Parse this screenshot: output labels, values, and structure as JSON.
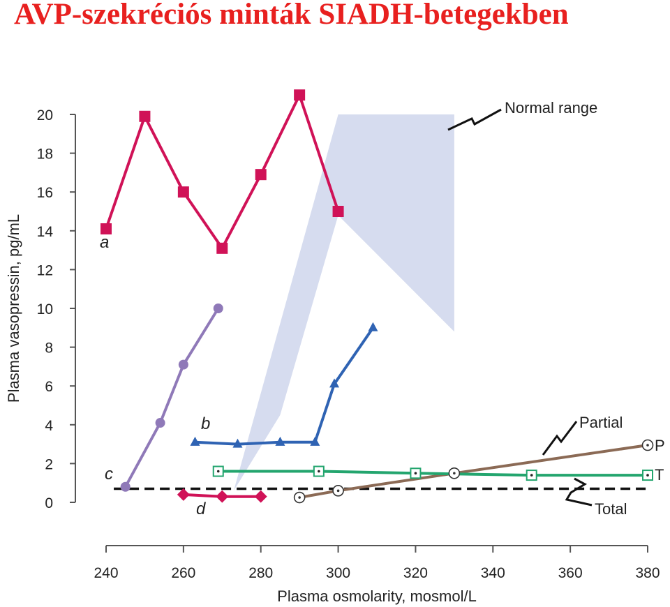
{
  "page": {
    "title": "AVP-szekréciós minták SIADH-betegekben"
  },
  "chart_data": {
    "type": "line",
    "xlabel": "Plasma osmolarity, mosmol/L",
    "ylabel": "Plasma vasopressin, pg/mL",
    "xlim": [
      240,
      380
    ],
    "ylim": [
      0,
      21
    ],
    "x_ticks": [
      240,
      260,
      280,
      300,
      320,
      340,
      360,
      380
    ],
    "y_ticks": [
      0,
      2,
      4,
      6,
      8,
      10,
      12,
      14,
      16,
      18,
      20
    ],
    "grid": false,
    "normal_range": {
      "label": "Normal range",
      "color": "#d6dcef",
      "upper": [
        [
          300,
          20
        ],
        [
          330,
          20
        ],
        [
          330,
          8.8
        ]
      ],
      "lower": [
        [
          273,
          0.6
        ],
        [
          285,
          4.5
        ],
        [
          300,
          14.8
        ]
      ]
    },
    "threshold_line": {
      "y": 0.7,
      "style": "dashed",
      "color": "#111111"
    },
    "series": [
      {
        "name": "a",
        "color": "#d01257",
        "marker": "square",
        "x": [
          240,
          250,
          260,
          270,
          280,
          290,
          300
        ],
        "y": [
          14.1,
          19.9,
          16.0,
          13.1,
          16.9,
          21.0,
          15.0
        ]
      },
      {
        "name": "b",
        "color": "#2f63b3",
        "marker": "triangle",
        "x": [
          263,
          274,
          285,
          294,
          299,
          309
        ],
        "y": [
          3.1,
          3.0,
          3.1,
          3.1,
          6.1,
          9.0
        ]
      },
      {
        "name": "c",
        "color": "#8f79b8",
        "marker": "circle",
        "x": [
          245,
          254,
          260,
          269
        ],
        "y": [
          0.8,
          4.1,
          7.1,
          10.0
        ]
      },
      {
        "name": "d",
        "color": "#d01257",
        "marker": "diamond",
        "x": [
          260,
          270,
          280
        ],
        "y": [
          0.4,
          0.3,
          0.3
        ]
      },
      {
        "name": "P",
        "color": "#8b6a55",
        "marker": "circle-dot",
        "x": [
          290,
          300,
          330,
          380
        ],
        "y": [
          0.25,
          0.6,
          1.5,
          2.95
        ]
      },
      {
        "name": "T",
        "color": "#23a56e",
        "marker": "square-dot",
        "x": [
          269,
          295,
          320,
          350,
          380
        ],
        "y": [
          1.6,
          1.6,
          1.5,
          1.4,
          1.4
        ]
      }
    ],
    "annotations": {
      "partial": "Partial",
      "total": "Total",
      "p_label": "P",
      "t_label": "T"
    }
  }
}
